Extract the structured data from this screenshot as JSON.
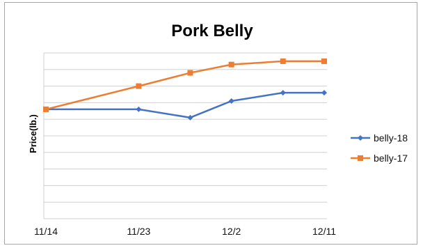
{
  "chart_data": {
    "type": "line",
    "title": "Pork Belly",
    "xlabel": "",
    "ylabel": "Price(lb.)",
    "grid": true,
    "legend_position": "right",
    "x": [
      0,
      9,
      14,
      18,
      23,
      27
    ],
    "x_tick_labels": [
      "11/14",
      "11/23",
      "12/2",
      "12/11"
    ],
    "x_tick_positions": [
      0,
      9,
      18,
      27
    ],
    "y_axis_labels_visible": false,
    "ylim": [
      0,
      10
    ],
    "series": [
      {
        "name": "belly-18",
        "color": "#4472c4",
        "marker": "diamond",
        "x": [
          0,
          9,
          14,
          18,
          23,
          27
        ],
        "values": [
          6.6,
          6.6,
          6.1,
          7.1,
          7.6,
          7.6
        ]
      },
      {
        "name": "belly-17",
        "color": "#ed7d31",
        "marker": "square",
        "x": [
          0,
          9,
          14,
          18,
          23,
          27
        ],
        "values": [
          6.6,
          8.0,
          8.8,
          9.3,
          9.5,
          9.5
        ]
      }
    ]
  }
}
